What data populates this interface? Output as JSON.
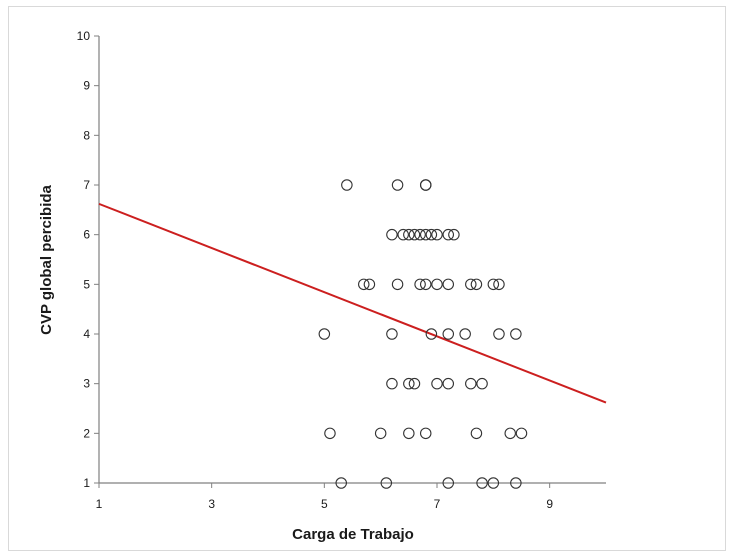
{
  "chart_data": {
    "type": "scatter",
    "title": "",
    "xlabel": "Carga de Trabajo",
    "ylabel": "CVP global percibida",
    "xlim": [
      1,
      10
    ],
    "ylim": [
      1,
      10
    ],
    "xticks": [
      1,
      3,
      5,
      7,
      9
    ],
    "yticks": [
      1,
      2,
      3,
      4,
      5,
      6,
      7,
      8,
      9,
      10
    ],
    "grid": false,
    "legend": "none",
    "marker": "open-circle",
    "marker_color": "#333333",
    "trendline": {
      "x": [
        1,
        10
      ],
      "y": [
        6.62,
        2.62
      ],
      "color": "#cc1f1f"
    },
    "points": [
      [
        5.4,
        7
      ],
      [
        6.3,
        7
      ],
      [
        6.8,
        7
      ],
      [
        6.8,
        7
      ],
      [
        6.2,
        6
      ],
      [
        6.4,
        6
      ],
      [
        6.5,
        6
      ],
      [
        6.6,
        6
      ],
      [
        6.7,
        6
      ],
      [
        6.8,
        6
      ],
      [
        6.9,
        6
      ],
      [
        7.0,
        6
      ],
      [
        7.2,
        6
      ],
      [
        7.3,
        6
      ],
      [
        5.7,
        5
      ],
      [
        5.8,
        5
      ],
      [
        6.3,
        5
      ],
      [
        6.7,
        5
      ],
      [
        6.8,
        5
      ],
      [
        7.0,
        5
      ],
      [
        7.2,
        5
      ],
      [
        7.6,
        5
      ],
      [
        7.7,
        5
      ],
      [
        8.0,
        5
      ],
      [
        8.1,
        5
      ],
      [
        5.0,
        4
      ],
      [
        6.2,
        4
      ],
      [
        6.9,
        4
      ],
      [
        7.2,
        4
      ],
      [
        7.5,
        4
      ],
      [
        8.1,
        4
      ],
      [
        8.4,
        4
      ],
      [
        6.2,
        3
      ],
      [
        6.5,
        3
      ],
      [
        6.6,
        3
      ],
      [
        7.0,
        3
      ],
      [
        7.2,
        3
      ],
      [
        7.6,
        3
      ],
      [
        7.8,
        3
      ],
      [
        5.1,
        2
      ],
      [
        6.0,
        2
      ],
      [
        6.5,
        2
      ],
      [
        6.8,
        2
      ],
      [
        7.7,
        2
      ],
      [
        8.3,
        2
      ],
      [
        8.5,
        2
      ],
      [
        5.3,
        1
      ],
      [
        6.1,
        1
      ],
      [
        7.2,
        1
      ],
      [
        7.8,
        1
      ],
      [
        8.0,
        1
      ],
      [
        8.4,
        1
      ]
    ]
  }
}
